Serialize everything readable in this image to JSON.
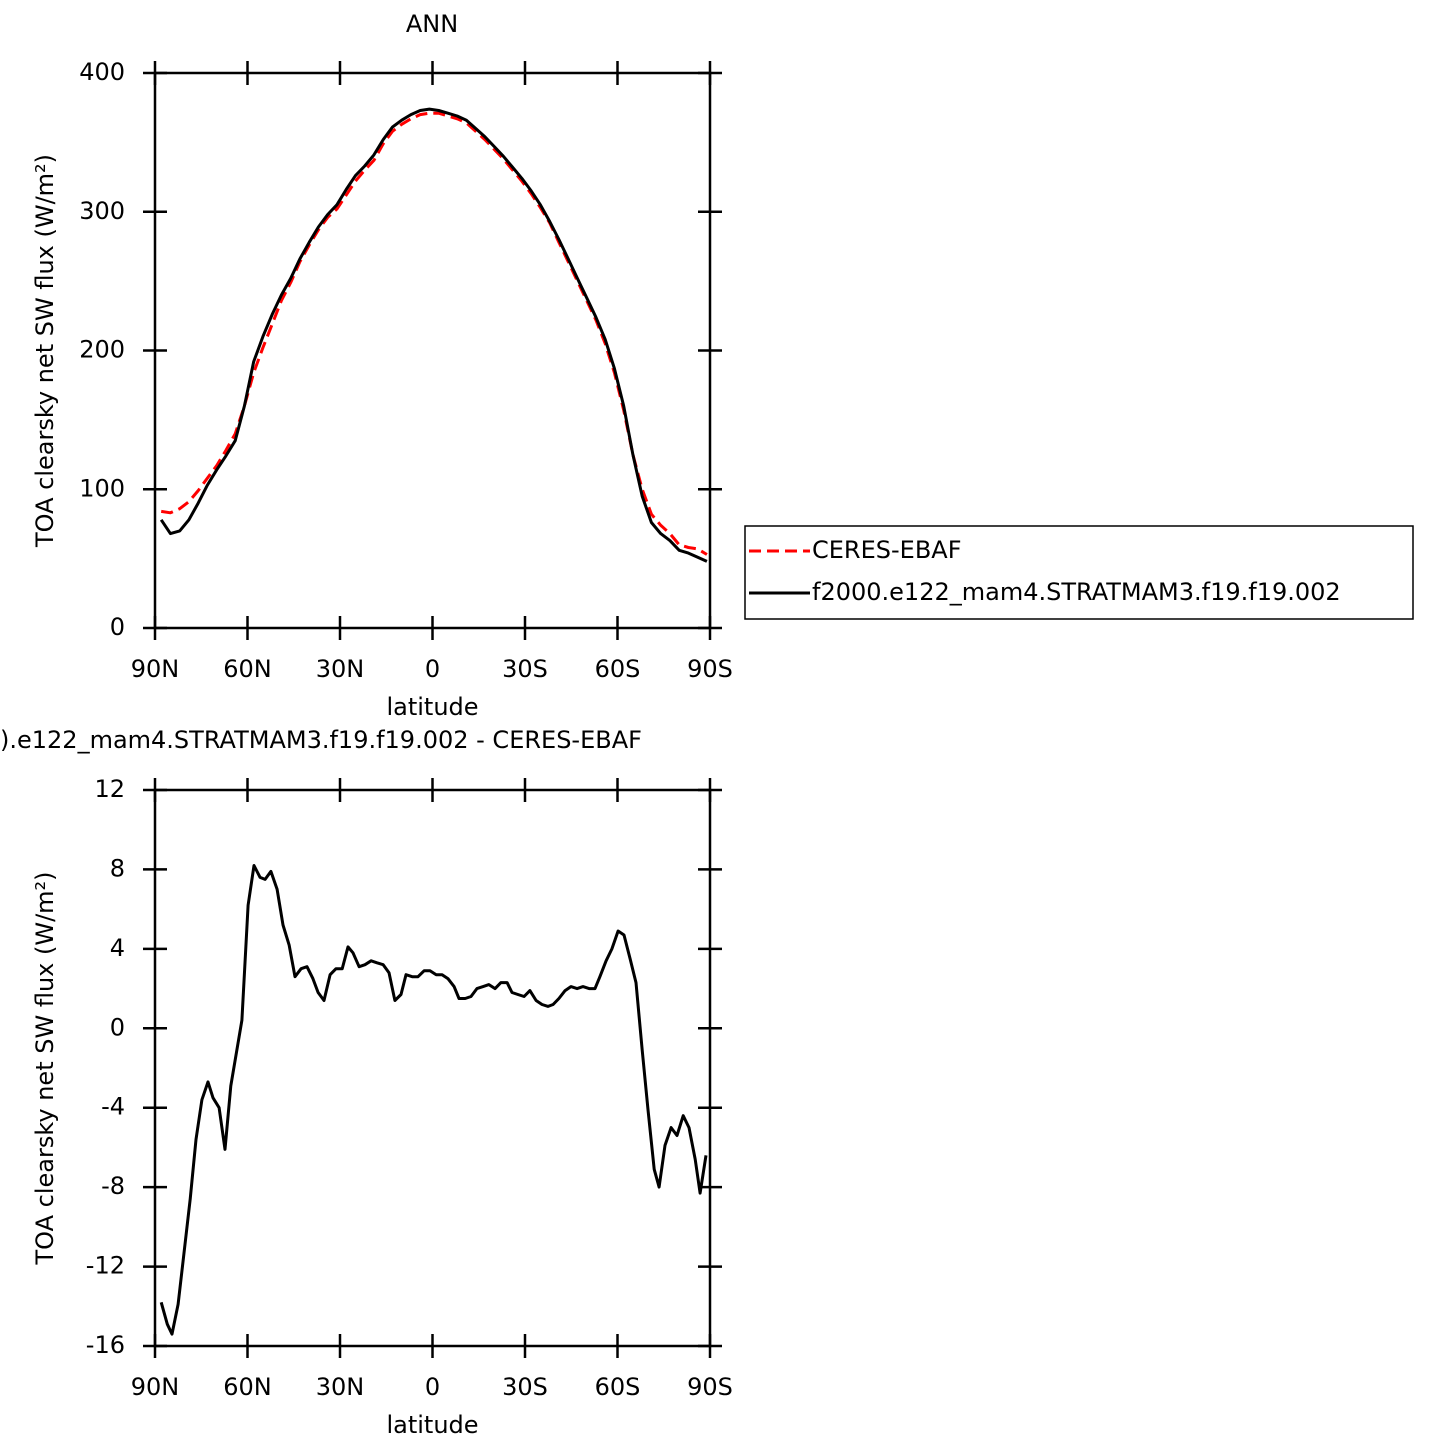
{
  "chart_data": [
    {
      "type": "line",
      "title": "ANN",
      "x_label": "latitude",
      "y_label": "TOA clearsky net SW flux (W/m²)",
      "x": [
        88,
        85,
        82,
        79,
        76,
        73,
        70,
        67,
        64,
        61,
        58,
        55,
        52,
        49,
        46,
        43,
        40,
        37,
        34,
        31,
        28,
        25,
        22,
        19,
        16,
        13,
        10,
        7,
        4,
        1,
        -2,
        -5,
        -8,
        -11,
        -14,
        -17,
        -20,
        -23,
        -26,
        -29,
        -32,
        -35,
        -38,
        -41,
        -44,
        -47,
        -50,
        -53,
        -56,
        -59,
        -62,
        -65,
        -68,
        -71,
        -74,
        -77,
        -80,
        -83,
        -86,
        -89
      ],
      "series": [
        {
          "name": "CERES-EBAF",
          "color": "#ff0000",
          "dashed": true,
          "values": [
            84,
            83,
            86,
            91,
            99,
            108,
            117,
            128,
            140,
            160,
            184,
            202,
            219,
            236,
            249,
            264,
            276,
            287,
            296,
            302,
            312,
            322,
            330,
            337,
            349,
            358,
            363,
            367,
            370,
            371,
            371,
            369,
            367,
            364,
            358,
            352,
            345,
            338,
            330,
            322,
            313,
            303,
            292,
            278,
            264,
            250,
            236,
            222,
            205,
            184,
            157,
            125,
            100,
            82,
            74,
            68,
            60,
            58,
            57,
            53
          ]
        },
        {
          "name": "f2000.e122_mam4.STRATMAM3.f19.f19.002",
          "color": "#000000",
          "dashed": false,
          "values": [
            78,
            68,
            70,
            78,
            90,
            103,
            114,
            124,
            135,
            160,
            192,
            210,
            226,
            240,
            252,
            266,
            278,
            289,
            298,
            305,
            316,
            326,
            333,
            341,
            352,
            361,
            366,
            370,
            373,
            374,
            373,
            371,
            369,
            366,
            360,
            354,
            347,
            340,
            332,
            324,
            315,
            305,
            293,
            280,
            266,
            252,
            238,
            224,
            208,
            187,
            160,
            125,
            95,
            76,
            68,
            63,
            56,
            54,
            51,
            48
          ]
        }
      ],
      "xlim": [
        90,
        -90
      ],
      "xticks": [
        {
          "value": 90,
          "label": "90N"
        },
        {
          "value": 60,
          "label": "60N"
        },
        {
          "value": 30,
          "label": "30N"
        },
        0,
        {
          "value": -30,
          "label": "30S"
        },
        {
          "value": -60,
          "label": "60S"
        },
        {
          "value": -90,
          "label": "90S"
        }
      ],
      "ylim": [
        0,
        400
      ],
      "yticks": [
        0,
        100,
        200,
        300,
        400
      ],
      "legend": "right"
    },
    {
      "type": "line",
      "title": ").e122_mam4.STRATMAM3.f19.f19.002 - CERES-EBAF",
      "x_label": "latitude",
      "y_label": "TOA clearsky net SW flux (W/m²)",
      "x": [
        88,
        86,
        84.5,
        82.5,
        78.6,
        76.7,
        74.8,
        72.8,
        71.2,
        69.2,
        67.3,
        65.4,
        61.8,
        59.8,
        57.9,
        55.9,
        54.3,
        52.4,
        50.4,
        48.5,
        46.5,
        44.6,
        42.6,
        40.7,
        38.8,
        37.1,
        35.2,
        33.2,
        31.3,
        29.3,
        27.4,
        25.8,
        23.8,
        21.9,
        19.9,
        18,
        16,
        14.1,
        12.2,
        10.2,
        8.6,
        6.6,
        4.7,
        2.7,
        0.8,
        -1.2,
        -3.1,
        -5,
        -7,
        -8.6,
        -10.6,
        -12.5,
        -14.4,
        -16.4,
        -18.3,
        -20.3,
        -22.2,
        -24.2,
        -25.8,
        -27.7,
        -29.7,
        -31.6,
        -33.6,
        -35.5,
        -37.5,
        -39.1,
        -41,
        -43,
        -44.9,
        -46.9,
        -48.8,
        -50.8,
        -52.7,
        -54.3,
        -56.3,
        -58.2,
        -60.2,
        -62.1,
        -64.1,
        -66,
        -68,
        -69.9,
        -71.9,
        -73.5,
        -75.4,
        -77.4,
        -79.3,
        -81.3,
        -83.2,
        -85.2,
        -86.8,
        -88.7
      ],
      "values": [
        -13.8,
        -14.9,
        -15.4,
        -13.9,
        -8.6,
        -5.6,
        -3.6,
        -2.7,
        -3.5,
        -4.0,
        -6.1,
        -2.9,
        0.4,
        6.2,
        8.2,
        7.6,
        7.5,
        7.9,
        7.0,
        5.2,
        4.2,
        2.6,
        3.0,
        3.1,
        2.5,
        1.8,
        1.4,
        2.7,
        3.0,
        3.0,
        4.1,
        3.8,
        3.1,
        3.2,
        3.4,
        3.3,
        3.2,
        2.8,
        1.4,
        1.7,
        2.7,
        2.6,
        2.6,
        2.9,
        2.9,
        2.7,
        2.7,
        2.5,
        2.1,
        1.5,
        1.5,
        1.6,
        2.0,
        2.1,
        2.2,
        2.0,
        2.3,
        2.3,
        1.8,
        1.7,
        1.6,
        1.9,
        1.4,
        1.2,
        1.1,
        1.2,
        1.5,
        1.9,
        2.1,
        2.0,
        2.1,
        2.0,
        2.0,
        2.6,
        3.4,
        4.0,
        4.9,
        4.7,
        3.5,
        2.3,
        -1.1,
        -4.1,
        -7.1,
        -8.0,
        -5.9,
        -5.0,
        -5.4,
        -4.4,
        -5.0,
        -6.6,
        -8.3,
        -6.4
      ],
      "color": "#000000",
      "xlim": [
        90,
        -90
      ],
      "xticks": [
        {
          "value": 90,
          "label": "90N"
        },
        {
          "value": 60,
          "label": "60N"
        },
        {
          "value": 30,
          "label": "30N"
        },
        0,
        {
          "value": -30,
          "label": "30S"
        },
        {
          "value": -60,
          "label": "60S"
        },
        {
          "value": -90,
          "label": "90S"
        }
      ],
      "ylim": [
        -16,
        12
      ],
      "yticks": [
        -16,
        -12,
        -8,
        -4,
        0,
        4,
        8,
        12
      ]
    }
  ]
}
